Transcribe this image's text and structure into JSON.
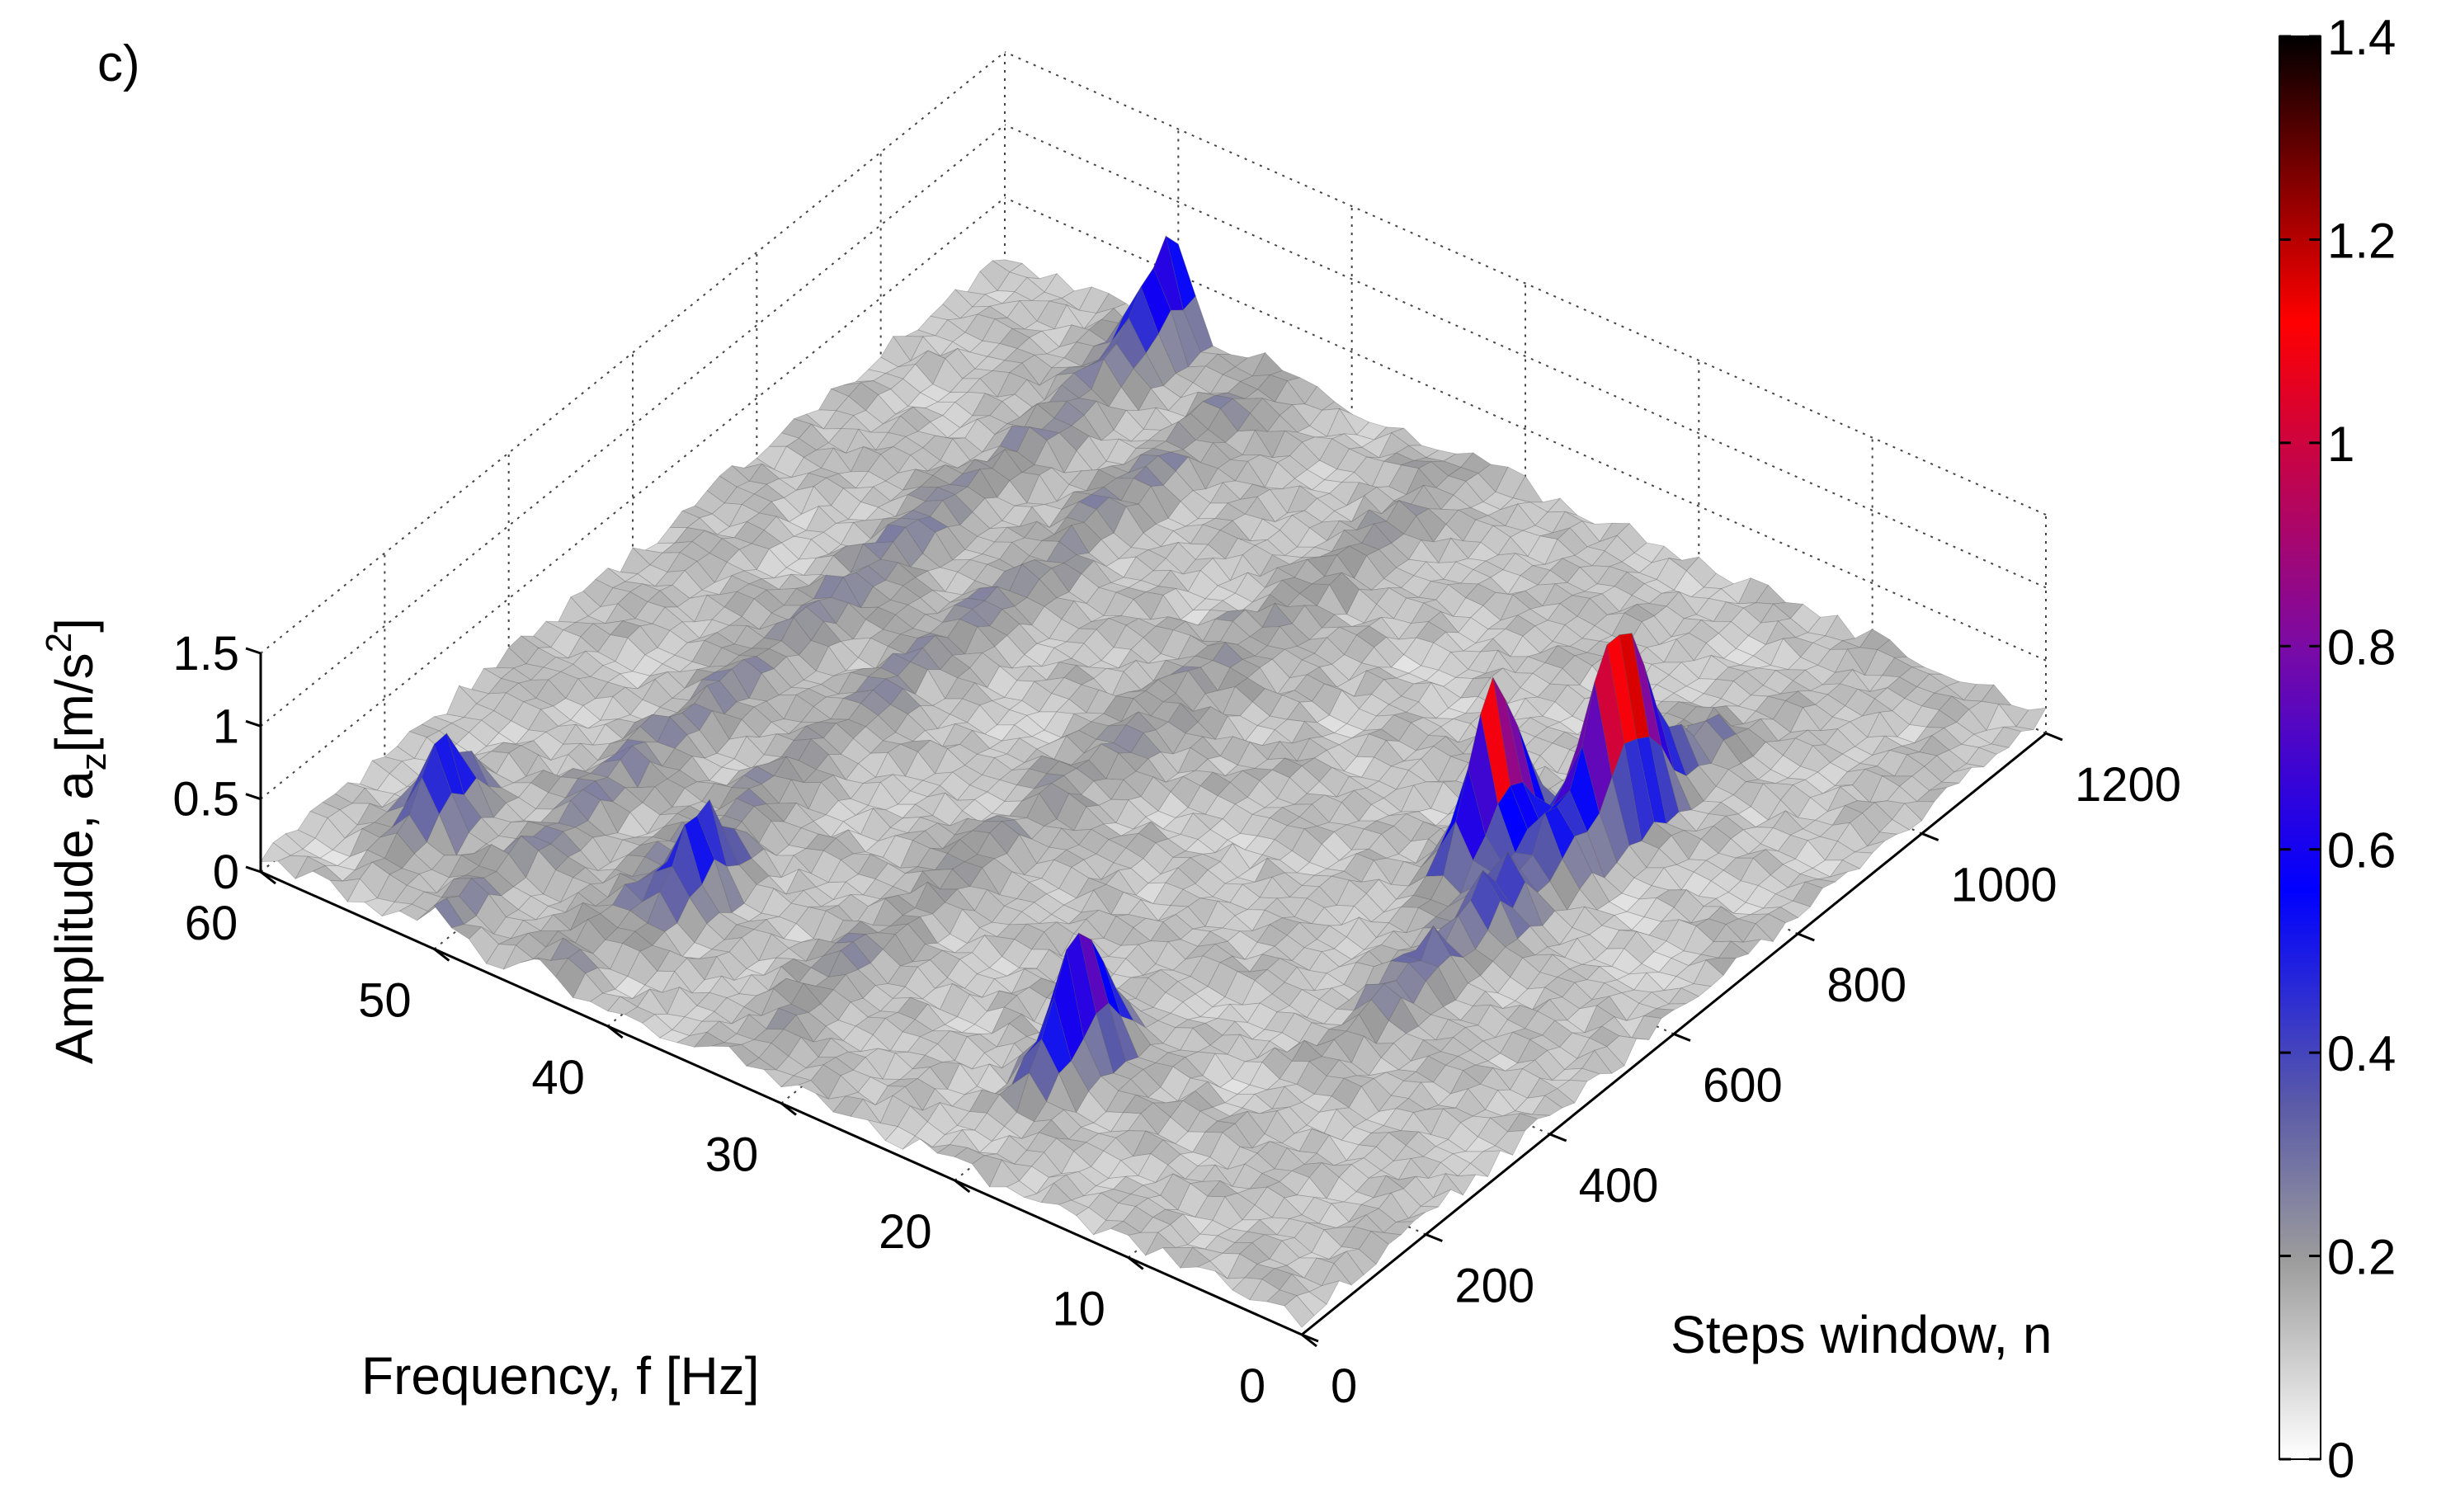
{
  "panel_label": "c)",
  "chart_data": {
    "type": "surface",
    "zlabel": "Amplitude, a",
    "zlabel_sub": "z",
    "zlabel_unit_pre": "[m/s",
    "zlabel_unit_sup": "2",
    "zlabel_unit_post": "]",
    "xlabel": "Frequency, f [Hz]",
    "ylabel": "Steps window, n",
    "xlim": [
      0,
      60
    ],
    "ylim": [
      0,
      1200
    ],
    "zlim": [
      0,
      1.5
    ],
    "grid": true,
    "x_ticks": [
      "0",
      "10",
      "20",
      "30",
      "40",
      "50",
      "60"
    ],
    "y_ticks": [
      "0",
      "200",
      "400",
      "600",
      "800",
      "1000",
      "1200"
    ],
    "z_ticks": [
      "0",
      "0.5",
      "1",
      "1.5"
    ],
    "colorbar": {
      "range": [
        0,
        1.4
      ],
      "ticks": [
        "0",
        "0.2",
        "0.4",
        "0.6",
        "0.8",
        "1",
        "1.2",
        "1.4"
      ],
      "stops": [
        "#ffffff",
        "#9c9c9c",
        "#5a5aa8",
        "#0000ff",
        "#7a0aa6",
        "#ff0000",
        "#000000"
      ]
    },
    "notable_peaks": [
      {
        "frequency_hz": 11,
        "steps_n": 820,
        "amplitude": 1.1
      },
      {
        "frequency_hz": 14,
        "steps_n": 700,
        "amplitude": 1.2
      },
      {
        "frequency_hz": 20,
        "steps_n": 200,
        "amplitude": 0.9
      },
      {
        "frequency_hz": 42,
        "steps_n": 200,
        "amplitude": 0.55
      },
      {
        "frequency_hz": 55,
        "steps_n": 150,
        "amplitude": 0.5
      },
      {
        "frequency_hz": 50,
        "steps_n": 1180,
        "amplitude": 0.55
      }
    ]
  }
}
